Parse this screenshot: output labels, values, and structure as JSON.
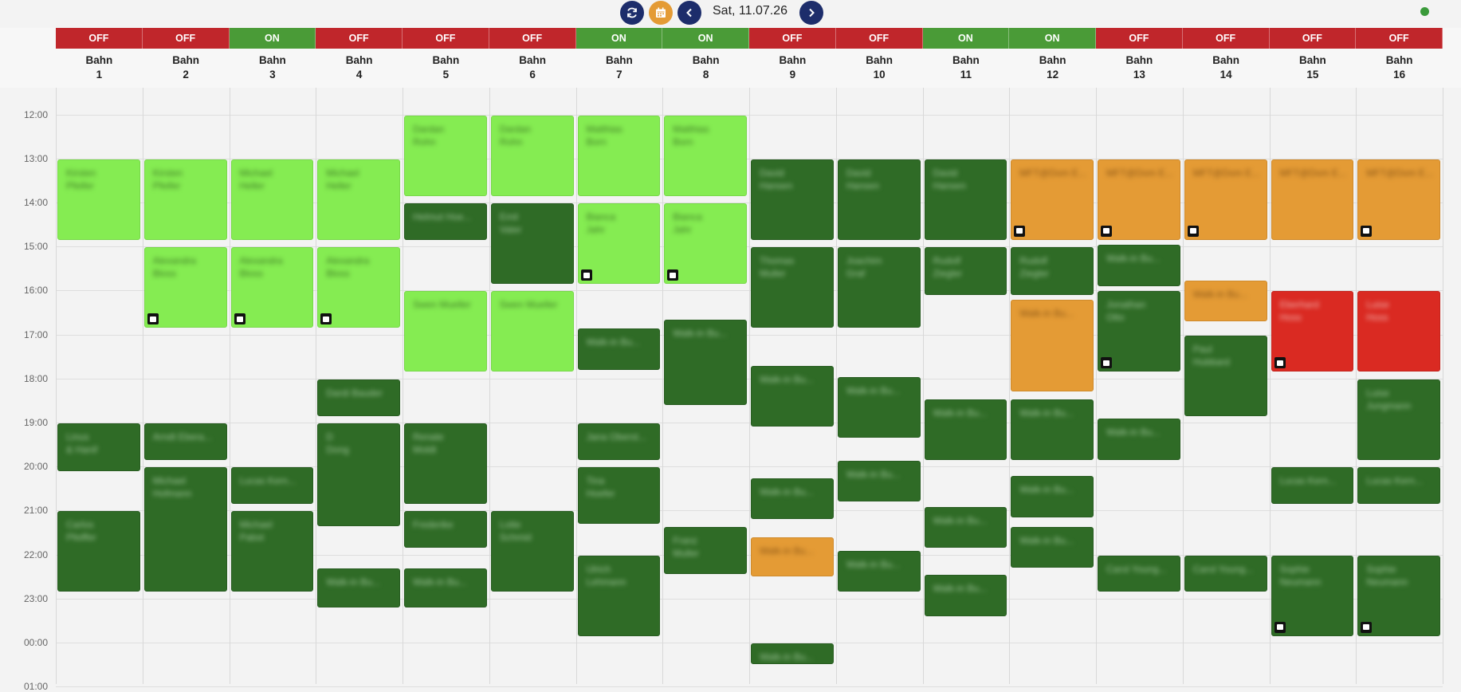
{
  "toolbar": {
    "date": "Sat, 11.07.26",
    "icons": [
      "refresh-icon",
      "calendar-icon",
      "chevron-left-icon",
      "chevron-right-icon"
    ],
    "colors": {
      "nav": "#1d2d6b",
      "calendar": "#e49b35",
      "status_online": "#3a9a3a"
    }
  },
  "lanes": [
    {
      "status": "OFF",
      "label": "Bahn",
      "number": "1"
    },
    {
      "status": "OFF",
      "label": "Bahn",
      "number": "2"
    },
    {
      "status": "ON",
      "label": "Bahn",
      "number": "3"
    },
    {
      "status": "OFF",
      "label": "Bahn",
      "number": "4"
    },
    {
      "status": "OFF",
      "label": "Bahn",
      "number": "5"
    },
    {
      "status": "OFF",
      "label": "Bahn",
      "number": "6"
    },
    {
      "status": "ON",
      "label": "Bahn",
      "number": "7"
    },
    {
      "status": "ON",
      "label": "Bahn",
      "number": "8"
    },
    {
      "status": "OFF",
      "label": "Bahn",
      "number": "9"
    },
    {
      "status": "OFF",
      "label": "Bahn",
      "number": "10"
    },
    {
      "status": "ON",
      "label": "Bahn",
      "number": "11"
    },
    {
      "status": "ON",
      "label": "Bahn",
      "number": "12"
    },
    {
      "status": "OFF",
      "label": "Bahn",
      "number": "13"
    },
    {
      "status": "OFF",
      "label": "Bahn",
      "number": "14"
    },
    {
      "status": "OFF",
      "label": "Bahn",
      "number": "15"
    },
    {
      "status": "OFF",
      "label": "Bahn",
      "number": "16"
    }
  ],
  "times": [
    "12:00",
    "13:00",
    "14:00",
    "15:00",
    "16:00",
    "17:00",
    "18:00",
    "19:00",
    "20:00",
    "21:00",
    "22:00",
    "23:00",
    "00:00",
    "01:00"
  ],
  "status_colors": {
    "OFF": "#c0262b",
    "ON": "#4a9b37"
  },
  "event_colors": {
    "light": "#85ec52",
    "dark": "#2f6b26",
    "orange": "#e49b35",
    "red": "#da2a22"
  },
  "events": [
    {
      "lane": 1,
      "start": 13.0,
      "end": 14.85,
      "type": "light",
      "lines": [
        "Kirsten",
        "Pfeifer"
      ]
    },
    {
      "lane": 1,
      "start": 19.0,
      "end": 20.1,
      "type": "dark",
      "lines": [
        "Linus",
        "& Hanif"
      ]
    },
    {
      "lane": 1,
      "start": 21.0,
      "end": 22.85,
      "type": "dark",
      "lines": [
        "Carlos",
        "Pfeiffer"
      ]
    },
    {
      "lane": 2,
      "start": 13.0,
      "end": 14.85,
      "type": "light",
      "lines": [
        "Kirsten",
        "Pfeifer"
      ]
    },
    {
      "lane": 2,
      "start": 15.0,
      "end": 16.85,
      "type": "light",
      "lines": [
        "Alexandra",
        "Bloss"
      ],
      "note": true
    },
    {
      "lane": 2,
      "start": 19.0,
      "end": 19.85,
      "type": "dark",
      "lines": [
        "Arndt Ebera..."
      ]
    },
    {
      "lane": 2,
      "start": 20.0,
      "end": 22.85,
      "type": "dark",
      "lines": [
        "Michael",
        "Hofmann"
      ]
    },
    {
      "lane": 3,
      "start": 13.0,
      "end": 14.85,
      "type": "light",
      "lines": [
        "Michael",
        "Heller"
      ]
    },
    {
      "lane": 3,
      "start": 15.0,
      "end": 16.85,
      "type": "light",
      "lines": [
        "Alexandra",
        "Bloss"
      ],
      "note": true
    },
    {
      "lane": 3,
      "start": 20.0,
      "end": 20.85,
      "type": "dark",
      "lines": [
        "Lucas Kern..."
      ]
    },
    {
      "lane": 3,
      "start": 21.0,
      "end": 22.85,
      "type": "dark",
      "lines": [
        "Michael",
        "Pabst"
      ]
    },
    {
      "lane": 4,
      "start": 13.0,
      "end": 14.85,
      "type": "light",
      "lines": [
        "Michael",
        "Heller"
      ]
    },
    {
      "lane": 4,
      "start": 15.0,
      "end": 16.85,
      "type": "light",
      "lines": [
        "Alexandra",
        "Bloss"
      ],
      "note": true
    },
    {
      "lane": 4,
      "start": 18.0,
      "end": 18.85,
      "type": "dark",
      "lines": [
        "Dardi Bauder"
      ]
    },
    {
      "lane": 4,
      "start": 19.0,
      "end": 21.35,
      "type": "dark",
      "lines": [
        "D",
        "Dong"
      ]
    },
    {
      "lane": 4,
      "start": 22.3,
      "end": 23.2,
      "type": "dark",
      "lines": [
        "Walk-in Bu..."
      ]
    },
    {
      "lane": 5,
      "start": 12.0,
      "end": 13.85,
      "type": "light",
      "lines": [
        "Dardan",
        "Rohn"
      ]
    },
    {
      "lane": 5,
      "start": 14.0,
      "end": 14.85,
      "type": "dark",
      "lines": [
        "Helmut Hoe..."
      ]
    },
    {
      "lane": 5,
      "start": 16.0,
      "end": 17.85,
      "type": "light",
      "lines": [
        "Swen Mueller"
      ]
    },
    {
      "lane": 5,
      "start": 19.0,
      "end": 20.85,
      "type": "dark",
      "lines": [
        "Renate",
        "Moldt"
      ]
    },
    {
      "lane": 5,
      "start": 21.0,
      "end": 21.85,
      "type": "dark",
      "lines": [
        "Frederike"
      ]
    },
    {
      "lane": 5,
      "start": 22.3,
      "end": 23.2,
      "type": "dark",
      "lines": [
        "Walk-in Bu..."
      ]
    },
    {
      "lane": 6,
      "start": 12.0,
      "end": 13.85,
      "type": "light",
      "lines": [
        "Dardan",
        "Rohn"
      ]
    },
    {
      "lane": 6,
      "start": 14.0,
      "end": 15.85,
      "type": "dark",
      "lines": [
        "Emil",
        "Vater"
      ]
    },
    {
      "lane": 6,
      "start": 16.0,
      "end": 17.85,
      "type": "light",
      "lines": [
        "Swen Mueller"
      ]
    },
    {
      "lane": 6,
      "start": 21.0,
      "end": 22.85,
      "type": "dark",
      "lines": [
        "Lotte",
        "Schmid"
      ]
    },
    {
      "lane": 7,
      "start": 12.0,
      "end": 13.85,
      "type": "light",
      "lines": [
        "Matthias",
        "Born"
      ]
    },
    {
      "lane": 7,
      "start": 14.0,
      "end": 15.85,
      "type": "light",
      "lines": [
        "Bianca",
        "Jahr"
      ],
      "note": true
    },
    {
      "lane": 7,
      "start": 16.85,
      "end": 17.8,
      "type": "dark",
      "lines": [
        "Walk-in Bu..."
      ]
    },
    {
      "lane": 7,
      "start": 19.0,
      "end": 19.85,
      "type": "dark",
      "lines": [
        "Jana Oberst..."
      ]
    },
    {
      "lane": 7,
      "start": 20.0,
      "end": 21.3,
      "type": "dark",
      "lines": [
        "Tina",
        "Hoefer"
      ]
    },
    {
      "lane": 7,
      "start": 22.0,
      "end": 23.85,
      "type": "dark",
      "lines": [
        "Ulrich",
        "Lehmann"
      ]
    },
    {
      "lane": 8,
      "start": 12.0,
      "end": 13.85,
      "type": "light",
      "lines": [
        "Matthias",
        "Born"
      ]
    },
    {
      "lane": 8,
      "start": 14.0,
      "end": 15.85,
      "type": "light",
      "lines": [
        "Bianca",
        "Jahr"
      ],
      "note": true
    },
    {
      "lane": 8,
      "start": 16.65,
      "end": 18.6,
      "type": "dark",
      "lines": [
        "Walk-in Bu..."
      ]
    },
    {
      "lane": 8,
      "start": 21.35,
      "end": 22.45,
      "type": "dark",
      "lines": [
        "Franz",
        "Muller"
      ]
    },
    {
      "lane": 9,
      "start": 13.0,
      "end": 14.85,
      "type": "dark",
      "lines": [
        "David",
        "Hansen"
      ]
    },
    {
      "lane": 9,
      "start": 15.0,
      "end": 16.85,
      "type": "dark",
      "lines": [
        "Thomas",
        "Muller"
      ]
    },
    {
      "lane": 9,
      "start": 17.7,
      "end": 19.1,
      "type": "dark",
      "lines": [
        "Walk-in Bu..."
      ]
    },
    {
      "lane": 9,
      "start": 20.25,
      "end": 21.2,
      "type": "dark",
      "lines": [
        "Walk-in Bu..."
      ]
    },
    {
      "lane": 9,
      "start": 21.6,
      "end": 22.5,
      "type": "orange",
      "lines": [
        "Walk-in Bu..."
      ]
    },
    {
      "lane": 9,
      "start": 24.0,
      "end": 24.5,
      "type": "dark",
      "lines": [
        "Walk-in Bu..."
      ]
    },
    {
      "lane": 10,
      "start": 13.0,
      "end": 14.85,
      "type": "dark",
      "lines": [
        "David",
        "Hansen"
      ]
    },
    {
      "lane": 10,
      "start": 15.0,
      "end": 16.85,
      "type": "dark",
      "lines": [
        "Joachim",
        "Graf"
      ]
    },
    {
      "lane": 10,
      "start": 17.95,
      "end": 19.35,
      "type": "dark",
      "lines": [
        "Walk-in Bu..."
      ]
    },
    {
      "lane": 10,
      "start": 19.85,
      "end": 20.8,
      "type": "dark",
      "lines": [
        "Walk-in Bu..."
      ]
    },
    {
      "lane": 10,
      "start": 21.9,
      "end": 22.85,
      "type": "dark",
      "lines": [
        "Walk-in Bu..."
      ]
    },
    {
      "lane": 11,
      "start": 13.0,
      "end": 14.85,
      "type": "dark",
      "lines": [
        "David",
        "Hansen"
      ]
    },
    {
      "lane": 11,
      "start": 15.0,
      "end": 16.1,
      "type": "dark",
      "lines": [
        "Rudolf",
        "Ziegler"
      ]
    },
    {
      "lane": 11,
      "start": 18.45,
      "end": 19.85,
      "type": "dark",
      "lines": [
        "Walk-in Bu..."
      ]
    },
    {
      "lane": 11,
      "start": 20.9,
      "end": 21.85,
      "type": "dark",
      "lines": [
        "Walk-in Bu..."
      ]
    },
    {
      "lane": 11,
      "start": 22.45,
      "end": 23.4,
      "type": "dark",
      "lines": [
        "Walk-in Bu..."
      ]
    },
    {
      "lane": 12,
      "start": 13.0,
      "end": 14.85,
      "type": "orange",
      "lines": [
        "MFT@Dom E..."
      ],
      "note": true
    },
    {
      "lane": 12,
      "start": 15.0,
      "end": 16.1,
      "type": "dark",
      "lines": [
        "Rudolf",
        "Ziegler"
      ]
    },
    {
      "lane": 12,
      "start": 16.2,
      "end": 18.3,
      "type": "orange",
      "lines": [
        "Walk-in Bu..."
      ]
    },
    {
      "lane": 12,
      "start": 18.45,
      "end": 19.85,
      "type": "dark",
      "lines": [
        "Walk-in Bu..."
      ]
    },
    {
      "lane": 12,
      "start": 20.2,
      "end": 21.15,
      "type": "dark",
      "lines": [
        "Walk-in Bu..."
      ]
    },
    {
      "lane": 12,
      "start": 21.35,
      "end": 22.3,
      "type": "dark",
      "lines": [
        "Walk-in Bu..."
      ]
    },
    {
      "lane": 13,
      "start": 13.0,
      "end": 14.85,
      "type": "orange",
      "lines": [
        "MFT@Dom E..."
      ],
      "note": true
    },
    {
      "lane": 13,
      "start": 14.95,
      "end": 15.9,
      "type": "dark",
      "lines": [
        "Walk-in Bu..."
      ]
    },
    {
      "lane": 13,
      "start": 16.0,
      "end": 17.85,
      "type": "dark",
      "lines": [
        "Jonathan",
        "Otto"
      ],
      "note": true
    },
    {
      "lane": 13,
      "start": 18.9,
      "end": 19.85,
      "type": "dark",
      "lines": [
        "Walk-in Bu..."
      ]
    },
    {
      "lane": 13,
      "start": 22.0,
      "end": 22.85,
      "type": "dark",
      "lines": [
        "Carol Young..."
      ]
    },
    {
      "lane": 14,
      "start": 13.0,
      "end": 14.85,
      "type": "orange",
      "lines": [
        "MFT@Dom E..."
      ],
      "note": true
    },
    {
      "lane": 14,
      "start": 15.75,
      "end": 16.7,
      "type": "orange",
      "lines": [
        "Walk-in Bu..."
      ]
    },
    {
      "lane": 14,
      "start": 17.0,
      "end": 18.85,
      "type": "dark",
      "lines": [
        "Paul",
        "Hubbard"
      ]
    },
    {
      "lane": 14,
      "start": 22.0,
      "end": 22.85,
      "type": "dark",
      "lines": [
        "Carol Young..."
      ]
    },
    {
      "lane": 15,
      "start": 13.0,
      "end": 14.85,
      "type": "orange",
      "lines": [
        "MFT@Dom E..."
      ]
    },
    {
      "lane": 15,
      "start": 16.0,
      "end": 17.85,
      "type": "red",
      "lines": [
        "Eberhard",
        "Hoss"
      ],
      "note": true
    },
    {
      "lane": 15,
      "start": 20.0,
      "end": 20.85,
      "type": "dark",
      "lines": [
        "Lucas Kern..."
      ]
    },
    {
      "lane": 15,
      "start": 22.0,
      "end": 23.85,
      "type": "dark",
      "lines": [
        "Sophie",
        "Neumann"
      ],
      "note": true
    },
    {
      "lane": 16,
      "start": 13.0,
      "end": 14.85,
      "type": "orange",
      "lines": [
        "MFT@Dom E..."
      ],
      "note": true
    },
    {
      "lane": 16,
      "start": 16.0,
      "end": 17.85,
      "type": "red",
      "lines": [
        "Luise",
        "Hoss"
      ]
    },
    {
      "lane": 16,
      "start": 18.0,
      "end": 19.85,
      "type": "dark",
      "lines": [
        "Luise",
        "Jungmann"
      ]
    },
    {
      "lane": 16,
      "start": 20.0,
      "end": 20.85,
      "type": "dark",
      "lines": [
        "Lucas Kern..."
      ]
    },
    {
      "lane": 16,
      "start": 22.0,
      "end": 23.85,
      "type": "dark",
      "lines": [
        "Sophie",
        "Neumann"
      ],
      "note": true
    }
  ]
}
